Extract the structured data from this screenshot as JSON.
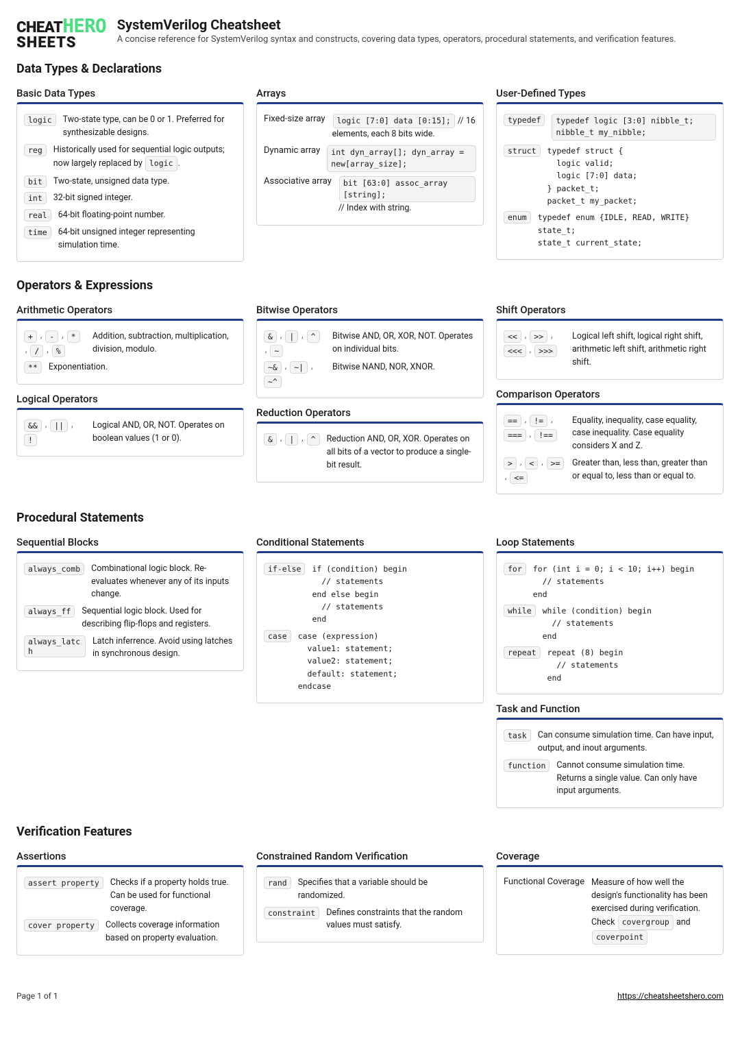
{
  "header": {
    "logo_cheat": "CHEAT",
    "logo_hero": "HERO",
    "logo_sheets": "SHEETS",
    "title": "SystemVerilog Cheatsheet",
    "subtitle": "A concise reference for SystemVerilog syntax and constructs, covering data types, operators, procedural statements, and verification features."
  },
  "s1": {
    "title": "Data Types & Declarations"
  },
  "basic": {
    "title": "Basic Data Types",
    "r1k": "logic",
    "r1d": "Two-state type, can be 0 or 1. Preferred for synthesizable designs.",
    "r2k": "reg",
    "r2d_a": "Historically used for sequential logic outputs; now largely replaced by ",
    "r2d_b": "logic",
    "r2d_c": ".",
    "r3k": "bit",
    "r3d": "Two-state, unsigned data type.",
    "r4k": "int",
    "r4d": "32-bit signed integer.",
    "r5k": "real",
    "r5d": "64-bit floating-point number.",
    "r6k": "time",
    "r6d": "64-bit unsigned integer representing simulation time."
  },
  "arrays": {
    "title": "Arrays",
    "r1k": "Fixed-size array",
    "r1c": "logic [7:0] data [0:15];",
    "r1d": " // 16 elements, each 8 bits wide.",
    "r2k": "Dynamic array",
    "r2c": "int dyn_array[]; dyn_array = new[array_size];",
    "r3k": "Associative array",
    "r3c": "bit [63:0] assoc_array [string];",
    "r3d": " // Index with string."
  },
  "udt": {
    "title": "User-Defined Types",
    "r1k": "typedef",
    "r1c": "typedef logic [3:0] nibble_t;  nibble_t my_nibble;",
    "r2k": "struct",
    "r2c": "typedef struct {\n  logic valid;\n  logic [7:0] data;\n} packet_t;\npacket_t my_packet;",
    "r3k": "enum",
    "r3c": "typedef enum {IDLE, READ, WRITE}\nstate_t;\nstate_t current_state;"
  },
  "s2": {
    "title": "Operators & Expressions"
  },
  "arith": {
    "title": "Arithmetic Operators",
    "r1k": [
      "+",
      "-",
      "*",
      "/",
      "%"
    ],
    "r1d": "Addition, subtraction, multiplication, division, modulo.",
    "r2k": [
      "**"
    ],
    "r2d": "Exponentiation."
  },
  "logical": {
    "title": "Logical Operators",
    "r1k": [
      "&&",
      "||",
      "!"
    ],
    "r1d": "Logical AND, OR, NOT. Operates on boolean values (1 or 0)."
  },
  "bitwise": {
    "title": "Bitwise Operators",
    "r1k": [
      "&",
      "|",
      "^",
      "~"
    ],
    "r1d": "Bitwise AND, OR, XOR, NOT. Operates on individual bits.",
    "r2k": [
      "~&",
      "~|",
      "~^"
    ],
    "r2d": "Bitwise NAND, NOR, XNOR."
  },
  "reduction": {
    "title": "Reduction Operators",
    "r1k": [
      "&",
      "|",
      "^"
    ],
    "r1d": "Reduction AND, OR, XOR. Operates on all bits of a vector to produce a single-bit result."
  },
  "shift": {
    "title": "Shift Operators",
    "r1k": [
      "<<",
      ">>",
      "<<<",
      ">>>"
    ],
    "r1d": "Logical left shift, logical right shift, arithmetic left shift, arithmetic right shift."
  },
  "compare": {
    "title": "Comparison Operators",
    "r1k": [
      "==",
      "!=",
      "===",
      "!=="
    ],
    "r1d": "Equality, inequality, case equality, case inequality. Case equality considers X and Z.",
    "r2k": [
      ">",
      "<",
      ">=",
      "<="
    ],
    "r2d": "Greater than, less than, greater than or equal to, less than or equal to."
  },
  "s3": {
    "title": "Procedural Statements"
  },
  "seq": {
    "title": "Sequential Blocks",
    "r1k": "always_comb",
    "r1d": "Combinational logic block. Re-evaluates whenever any of its inputs change.",
    "r2k": "always_ff",
    "r2d": "Sequential logic block. Used for describing flip-flops and registers.",
    "r3k": "always_latch",
    "r3d": "Latch inferrence. Avoid using latches in synchronous design."
  },
  "cond": {
    "title": "Conditional Statements",
    "r1k": "if-else",
    "r1c": "if (condition) begin\n  // statements\nend else begin\n  // statements\nend",
    "r2k": "case",
    "r2c": "case (expression)\n  value1: statement;\n  value2: statement;\n  default: statement;\nendcase"
  },
  "loop": {
    "title": "Loop Statements",
    "r1k": "for",
    "r1c": "for (int i = 0; i < 10; i++) begin\n  // statements\nend",
    "r2k": "while",
    "r2c": "while (condition) begin\n  // statements\nend",
    "r3k": "repeat",
    "r3c": "repeat (8) begin\n  // statements\nend"
  },
  "taskfn": {
    "title": "Task and Function",
    "r1k": "task",
    "r1d": "Can consume simulation time. Can have input, output, and inout arguments.",
    "r2k": "function",
    "r2d": "Cannot consume simulation time. Returns a single value. Can only have input arguments."
  },
  "s4": {
    "title": "Verification Features"
  },
  "assert": {
    "title": "Assertions",
    "r1k": "assert property",
    "r1d": "Checks if a property holds true. Can be used for functional coverage.",
    "r2k": "cover property",
    "r2d": "Collects coverage information based on property evaluation."
  },
  "crv": {
    "title": "Constrained Random Verification",
    "r1k": "rand",
    "r1d": "Specifies that a variable should be randomized.",
    "r2k": "constraint",
    "r2d": "Defines constraints that the random values must satisfy."
  },
  "cov": {
    "title": "Coverage",
    "r1k": "Functional Coverage",
    "r1d_a": "Measure of how well the design's functionality has been exercised during verification. Check ",
    "r1d_b": "covergroup",
    "r1d_c": " and ",
    "r1d_d": "coverpoint"
  },
  "footer": {
    "page": "Page 1 of 1",
    "url": "https://cheatsheetshero.com"
  }
}
